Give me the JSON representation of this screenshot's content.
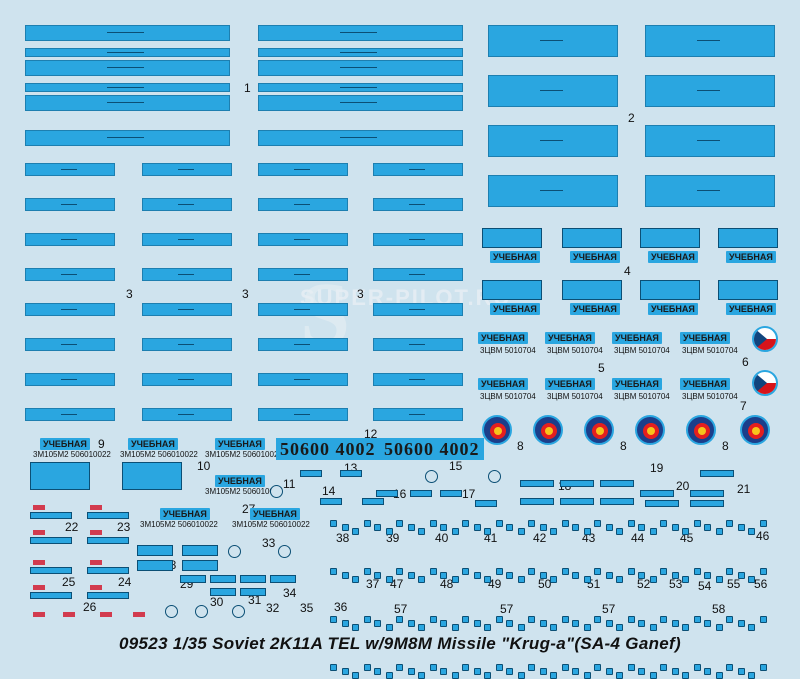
{
  "footer_title": "09523 1/35 Soviet 2K11A  TEL w/9M8M Missile \"Krug-a\"(SA-4 Ganef)",
  "watermark": "SUPER-PILOT.RU",
  "decal_numbers": [
    "1",
    "2",
    "3",
    "3",
    "3",
    "4",
    "5",
    "6",
    "7",
    "8",
    "8",
    "8",
    "9",
    "10",
    "10",
    "11",
    "12",
    "13",
    "14",
    "15",
    "16",
    "17",
    "18",
    "19",
    "20",
    "21",
    "22",
    "23",
    "24",
    "25",
    "26",
    "27",
    "28",
    "29",
    "30",
    "31",
    "32",
    "33",
    "34",
    "35",
    "36",
    "37",
    "38",
    "39",
    "40",
    "41",
    "42",
    "43",
    "44",
    "45",
    "46",
    "47",
    "48",
    "49",
    "50",
    "51",
    "52",
    "53",
    "54",
    "55",
    "56",
    "57",
    "57",
    "57",
    "58"
  ],
  "uchebnaya": "УЧЕБНАЯ",
  "serial_5": "3ЦВМ 5010704",
  "serial_9": "3М105М2 506010022",
  "big_plate": "50600 4002",
  "colors": {
    "background": "#cfe3ee",
    "decal_blue": "#2aa6e0",
    "outline": "#0b4f75",
    "red": "#d23b4e"
  }
}
